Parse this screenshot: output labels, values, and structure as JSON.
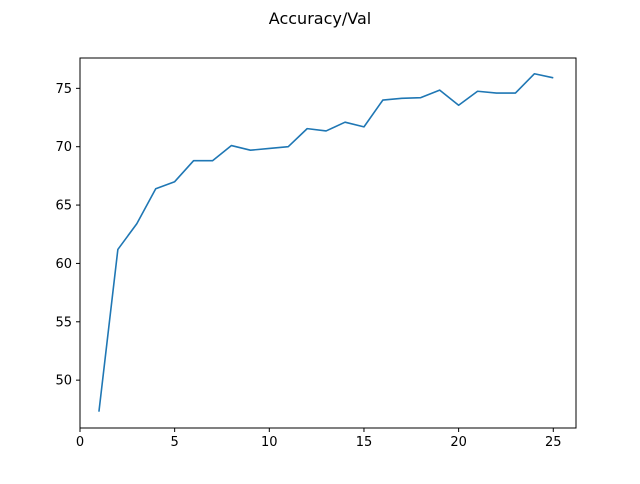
{
  "chart_data": {
    "type": "line",
    "title": "Accuracy/Val",
    "xlabel": "",
    "ylabel": "",
    "xlim": [
      0,
      26.2
    ],
    "ylim": [
      45.9,
      77.6
    ],
    "xticks": [
      0,
      5,
      10,
      15,
      20,
      25
    ],
    "yticks": [
      50,
      55,
      60,
      65,
      70,
      75
    ],
    "grid": false,
    "line_color": "#1f77b4",
    "series": [
      {
        "x": [
          1,
          2,
          3,
          4,
          5,
          6,
          7,
          8,
          9,
          10,
          11,
          12,
          13,
          14,
          15,
          16,
          17,
          18,
          19,
          20,
          21,
          22,
          23,
          24,
          25
        ],
        "values": [
          47.3,
          61.2,
          63.4,
          66.4,
          67.0,
          68.8,
          68.8,
          70.1,
          69.7,
          69.85,
          70.0,
          71.55,
          71.35,
          72.1,
          71.7,
          74.0,
          74.15,
          74.2,
          74.85,
          73.55,
          74.75,
          74.6,
          74.6,
          76.25,
          75.9
        ]
      }
    ]
  }
}
